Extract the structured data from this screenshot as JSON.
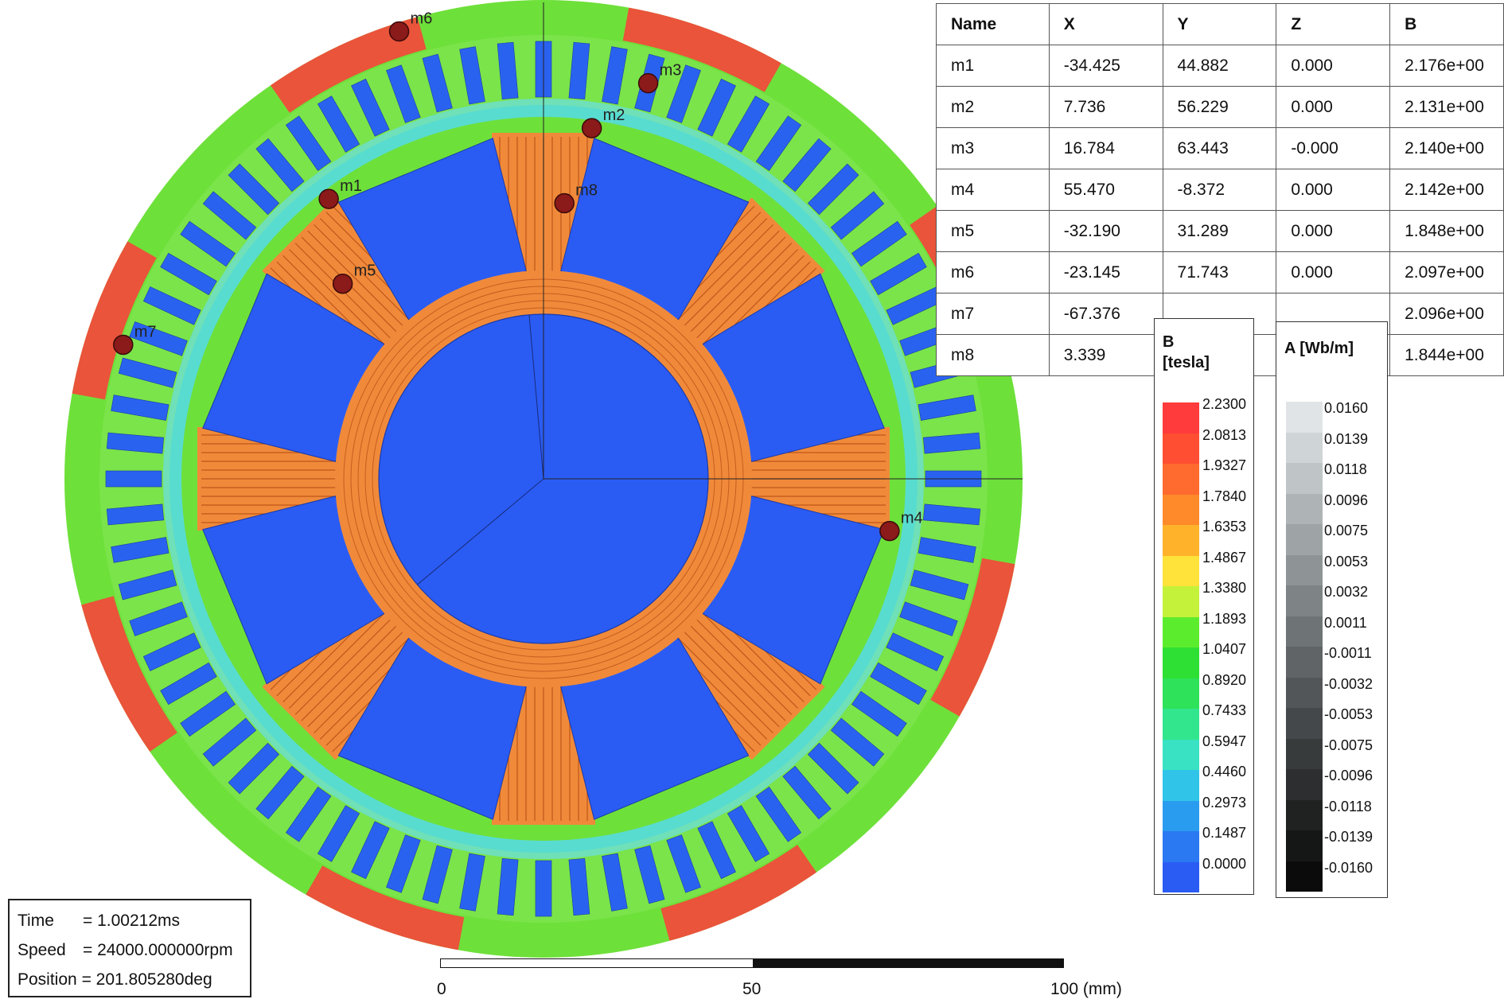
{
  "marker_table": {
    "columns": [
      "Name",
      "X",
      "Y",
      "Z",
      "B"
    ],
    "rows": [
      [
        "m1",
        "-34.425",
        "44.882",
        "0.000",
        "2.176e+00"
      ],
      [
        "m2",
        "7.736",
        "56.229",
        "0.000",
        "2.131e+00"
      ],
      [
        "m3",
        "16.784",
        "63.443",
        "-0.000",
        "2.140e+00"
      ],
      [
        "m4",
        "55.470",
        "-8.372",
        "0.000",
        "2.142e+00"
      ],
      [
        "m5",
        "-32.190",
        "31.289",
        "0.000",
        "1.848e+00"
      ],
      [
        "m6",
        "-23.145",
        "71.743",
        "0.000",
        "2.097e+00"
      ],
      [
        "m7",
        "-67.376",
        "",
        "",
        "2.096e+00"
      ],
      [
        "m8",
        "3.339",
        "",
        "",
        "1.844e+00"
      ]
    ]
  },
  "markers": [
    {
      "label": "m1",
      "x": -34.425,
      "y": 44.882
    },
    {
      "label": "m2",
      "x": 7.736,
      "y": 56.229
    },
    {
      "label": "m3",
      "x": 16.784,
      "y": 63.443
    },
    {
      "label": "m4",
      "x": 55.47,
      "y": -8.372
    },
    {
      "label": "m5",
      "x": -32.19,
      "y": 31.289
    },
    {
      "label": "m6",
      "x": -23.145,
      "y": 71.743
    },
    {
      "label": "m7",
      "x": -67.376,
      "y": 21.5
    },
    {
      "label": "m8",
      "x": 3.339,
      "y": 44.2
    }
  ],
  "legend_b": {
    "title_line1": "B",
    "title_line2": "[tesla]",
    "levels": [
      "2.2300",
      "2.0813",
      "1.9327",
      "1.7840",
      "1.6353",
      "1.4867",
      "1.3380",
      "1.1893",
      "1.0407",
      "0.8920",
      "0.7433",
      "0.5947",
      "0.4460",
      "0.2973",
      "0.1487",
      "0.0000"
    ],
    "colors": [
      "#ff3b3b",
      "#ff4e32",
      "#ff6a2e",
      "#ff8a2a",
      "#ffb22a",
      "#ffe23a",
      "#c4f23a",
      "#5cec2e",
      "#2ee034",
      "#2ee25a",
      "#32e68e",
      "#38e2c2",
      "#30c4e8",
      "#2a9cf0",
      "#2a78f2",
      "#2a5cf4"
    ]
  },
  "legend_a": {
    "title": "A [Wb/m]",
    "levels": [
      "0.0160",
      "0.0139",
      "0.0118",
      "0.0096",
      "0.0075",
      "0.0053",
      "0.0032",
      "0.0011",
      "-0.0011",
      "-0.0032",
      "-0.0053",
      "-0.0075",
      "-0.0096",
      "-0.0118",
      "-0.0139",
      "-0.0160"
    ],
    "colors": [
      "#e0e4e6",
      "#cfd4d6",
      "#bfc4c6",
      "#aeb3b5",
      "#9ea3a5",
      "#8e9395",
      "#7e8385",
      "#6e7375",
      "#606466",
      "#525658",
      "#45484a",
      "#383b3c",
      "#2c2e2f",
      "#202222",
      "#151616",
      "#0b0b0b"
    ]
  },
  "time_info": {
    "time_label": "Time",
    "time_value": "= 1.00212ms",
    "speed_label": "Speed",
    "speed_value": "= 24000.000000rpm",
    "position_label": "Position",
    "position_value": "= 201.805280deg"
  },
  "scale": {
    "tick0": "0",
    "tick50": "50",
    "tick100": "100 (mm)"
  },
  "colors": {
    "rotor_blue": "#2a5cf4",
    "iron_orange": "#f08a3a",
    "stator_green": "#6ee03a",
    "slot_blue": "#2a62f0",
    "hot_red": "#ff3b3b",
    "marker": "#8b1a1a"
  }
}
